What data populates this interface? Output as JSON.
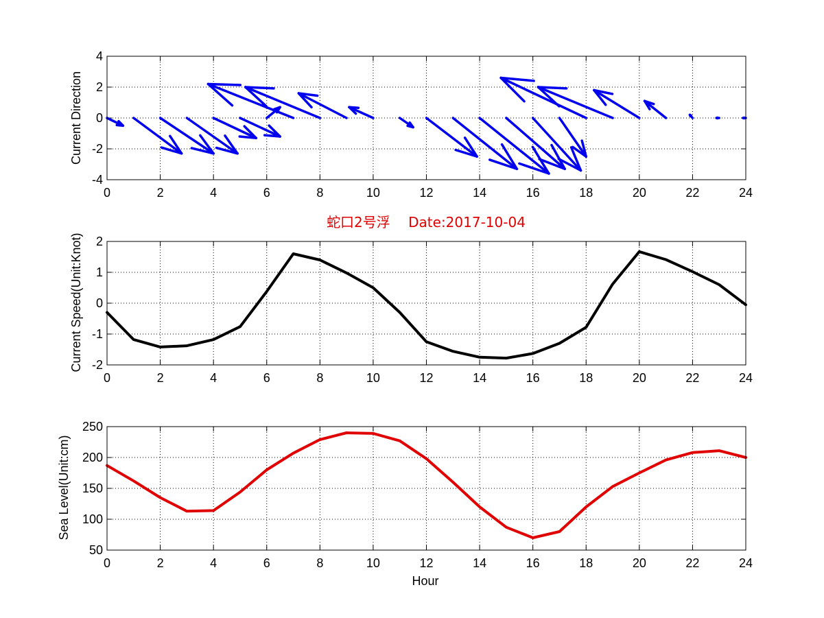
{
  "chart_data": [
    {
      "type": "quiver",
      "ylabel": "Current Direction",
      "xlim": [
        0,
        24
      ],
      "ylim": [
        -4,
        4
      ],
      "xticks": [
        0,
        2,
        4,
        6,
        8,
        10,
        12,
        14,
        16,
        18,
        20,
        22,
        24
      ],
      "yticks": [
        -4,
        -2,
        0,
        2,
        4
      ],
      "grid": true,
      "color": "#0000ee",
      "x": [
        0,
        1,
        2,
        3,
        4,
        5,
        6,
        7,
        8,
        9,
        10,
        11,
        12,
        13,
        14,
        15,
        16,
        17,
        18,
        19,
        20,
        21,
        22,
        23,
        24
      ],
      "u": [
        0.6,
        1.8,
        2.0,
        1.9,
        1.6,
        1.5,
        0.5,
        -3.2,
        -2.8,
        -1.8,
        -0.9,
        0.5,
        1.9,
        2.4,
        2.6,
        2.2,
        1.8,
        1.0,
        -3.2,
        -2.8,
        -1.7,
        -0.8,
        -0.1,
        -0.1,
        -0.1
      ],
      "v": [
        -0.5,
        -2.3,
        -2.3,
        -2.3,
        -1.3,
        -1.2,
        0.7,
        2.2,
        2.0,
        1.6,
        0.7,
        -0.6,
        -2.5,
        -3.3,
        -3.6,
        -3.3,
        -3.4,
        -2.5,
        2.6,
        2.0,
        1.8,
        1.1,
        0.2,
        0,
        0
      ]
    },
    {
      "type": "line",
      "ylabel": "Current Speed(Unit:Knot)",
      "xlim": [
        0,
        24
      ],
      "ylim": [
        -2,
        2
      ],
      "xticks": [
        0,
        2,
        4,
        6,
        8,
        10,
        12,
        14,
        16,
        18,
        20,
        22,
        24
      ],
      "yticks": [
        -2,
        -1,
        0,
        1,
        2
      ],
      "grid": true,
      "color": "#000000",
      "x": [
        0,
        1,
        2,
        3,
        4,
        5,
        6,
        7,
        8,
        9,
        10,
        11,
        12,
        13,
        14,
        15,
        16,
        17,
        18,
        19,
        20,
        21,
        22,
        23,
        24
      ],
      "y": [
        -0.3,
        -1.18,
        -1.42,
        -1.38,
        -1.18,
        -0.76,
        0.38,
        1.6,
        1.4,
        0.98,
        0.5,
        -0.3,
        -1.25,
        -1.56,
        -1.75,
        -1.78,
        -1.63,
        -1.3,
        -0.78,
        0.62,
        1.67,
        1.41,
        1.02,
        0.6,
        -0.05
      ]
    },
    {
      "type": "line",
      "ylabel": "Sea Level(Unit:cm)",
      "xlabel": "Hour",
      "xlim": [
        0,
        24
      ],
      "ylim": [
        50,
        250
      ],
      "xticks": [
        0,
        2,
        4,
        6,
        8,
        10,
        12,
        14,
        16,
        18,
        20,
        22,
        24
      ],
      "yticks": [
        50,
        100,
        150,
        200,
        250
      ],
      "grid": true,
      "color": "#e00000",
      "x": [
        0,
        1,
        2,
        3,
        4,
        5,
        6,
        7,
        8,
        9,
        10,
        11,
        12,
        13,
        14,
        15,
        16,
        17,
        18,
        19,
        20,
        21,
        22,
        23,
        24
      ],
      "y": [
        187,
        162,
        135,
        113,
        114,
        144,
        180,
        207,
        229,
        240,
        239,
        227,
        198,
        160,
        120,
        87,
        70,
        80,
        120,
        153,
        175,
        196,
        208,
        211,
        200
      ]
    }
  ],
  "title": "蛇口2号浮　 Date:2017-10-04"
}
